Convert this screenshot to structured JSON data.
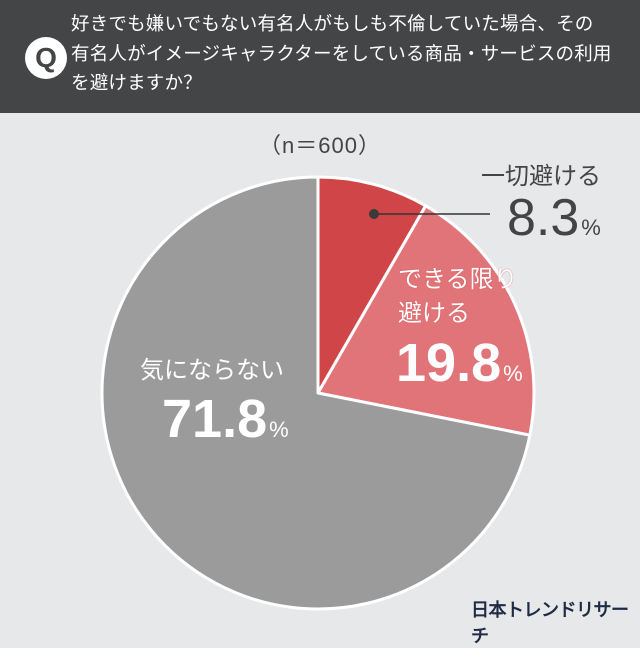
{
  "header": {
    "badge": "Q",
    "question_lines": [
      "好きでも嫌いでもない有名人がもしも不倫していた場合、その",
      "有名人がイメージキャラクターをしている商品・サービスの利用",
      "を避けますか？"
    ]
  },
  "sample_size": "（n＝600）",
  "colors": {
    "background": "#e6e8e9",
    "header": "#444546",
    "slice_avoid_all": "#d04548",
    "slice_avoid_possible": "#e07478",
    "slice_dont_care": "#9b9b9b",
    "logo": "#1f2a44"
  },
  "labels": {
    "avoid_all": {
      "name": "一切避ける",
      "value": "8.3",
      "unit": "%"
    },
    "avoid_possible": {
      "name_line1": "できる限り",
      "name_line2": "避ける",
      "value": "19.8",
      "unit": "%"
    },
    "dont_care": {
      "name": "気にならない",
      "value": "71.8",
      "unit": "%"
    }
  },
  "footer": {
    "logo": "日本トレンドリサーチ"
  },
  "chart_data": {
    "type": "pie",
    "title": "好きでも嫌いでもない有名人がもしも不倫していた場合、その有名人がイメージキャラクターをしている商品・サービスの利用を避けますか？",
    "subtitle": "（n＝600）",
    "categories": [
      "一切避ける",
      "できる限り避ける",
      "気にならない"
    ],
    "values": [
      8.3,
      19.8,
      71.8
    ],
    "unit": "%",
    "start_angle": "top (12 o'clock), clockwise",
    "colors": [
      "#d04548",
      "#e07478",
      "#9b9b9b"
    ],
    "legend": "none (direct labels)"
  }
}
